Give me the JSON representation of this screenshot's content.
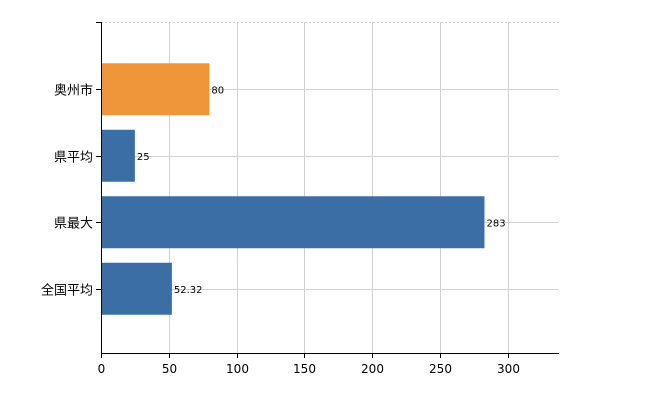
{
  "chart_data": {
    "type": "bar",
    "orientation": "horizontal",
    "categories": [
      "奥州市",
      "県平均",
      "県最大",
      "全国平均"
    ],
    "values": [
      80,
      25,
      283,
      52.32
    ],
    "data_labels": [
      "80",
      "25",
      "283",
      "52.32"
    ],
    "colors": [
      "#f0963a",
      "#3a6ea5",
      "#3a6ea5",
      "#3a6ea5"
    ],
    "xlim": [
      0,
      338
    ],
    "x_ticks": [
      0,
      50,
      100,
      150,
      200,
      250,
      300
    ],
    "x_tick_labels": [
      "0",
      "50",
      "100",
      "150",
      "200",
      "250",
      "300"
    ],
    "grid": true
  }
}
